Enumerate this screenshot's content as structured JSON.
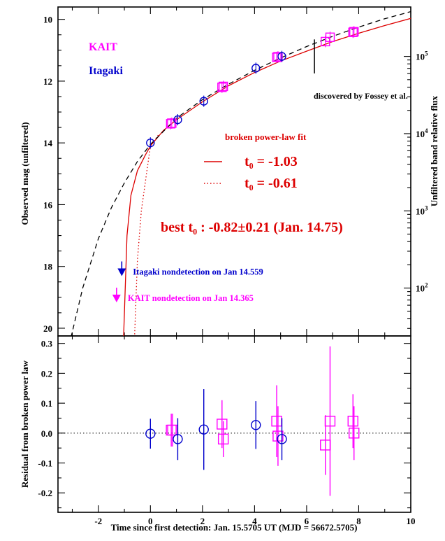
{
  "chart_data": [
    {
      "type": "scatter",
      "panel": "top",
      "xlabel": "",
      "ylabel": "Observed mag (unfiltered)",
      "ylabel_right": "Unfiltered band relative flux",
      "xlim": [
        -3.55,
        10
      ],
      "ylim": [
        20.25,
        9.6
      ],
      "y_inverted": true,
      "y_ticks": [
        "10",
        "12",
        "14",
        "16",
        "18",
        "20"
      ],
      "y_right_ticks": [
        "10^5",
        "10^4",
        "10^3",
        "10^2"
      ],
      "y_right_tick_mags": [
        11.2,
        13.7,
        16.2,
        18.7
      ],
      "x_ticks": [
        -2,
        0,
        2,
        4,
        6,
        8,
        10
      ],
      "legend_labels": [
        "KAIT",
        "Itagaki"
      ],
      "series": [
        {
          "name": "KAIT",
          "color": "#ff00ff",
          "marker": "square",
          "x": [
            0.78,
            0.82,
            2.75,
            2.8,
            4.85,
            4.9,
            6.72,
            6.9,
            7.78,
            7.82
          ],
          "y": [
            13.38,
            13.36,
            12.2,
            12.17,
            11.23,
            11.21,
            10.72,
            10.58,
            10.42,
            10.4
          ]
        },
        {
          "name": "Itagaki",
          "color": "#0000cc",
          "marker": "circle",
          "x": [
            0.0,
            1.05,
            2.05,
            4.05,
            5.05
          ],
          "y": [
            14.0,
            13.25,
            12.65,
            11.58,
            11.2
          ]
        }
      ],
      "fits": [
        {
          "name": "t₀ = -1.03",
          "style": "solid",
          "color": "#dd0000",
          "t0": -1.03,
          "curve": [
            [
              -1.03,
              20.3
            ],
            [
              -0.9,
              17.0
            ],
            [
              -0.75,
              15.7
            ],
            [
              -0.5,
              14.9
            ],
            [
              -0.2,
              14.4
            ],
            [
              0,
              14.1
            ],
            [
              0.5,
              13.6
            ],
            [
              1,
              13.25
            ],
            [
              2,
              12.67
            ],
            [
              3,
              12.15
            ],
            [
              4,
              11.72
            ],
            [
              5,
              11.35
            ],
            [
              6,
              11.03
            ],
            [
              7,
              10.72
            ],
            [
              8,
              10.45
            ],
            [
              9,
              10.2
            ],
            [
              10,
              9.97
            ]
          ]
        },
        {
          "name": "t₀ = -0.61",
          "style": "dotted",
          "color": "#dd0000",
          "t0": -0.61,
          "curve": [
            [
              -0.61,
              20.3
            ],
            [
              -0.5,
              17.8
            ],
            [
              -0.35,
              16.2
            ],
            [
              -0.15,
              15.0
            ],
            [
              0,
              14.1
            ],
            [
              0.3,
              13.75
            ]
          ]
        },
        {
          "name": "dashed model",
          "style": "dashed",
          "color": "#000000",
          "curve": [
            [
              -3.05,
              20.3
            ],
            [
              -2.6,
              18.7
            ],
            [
              -2.0,
              17.1
            ],
            [
              -1.5,
              16.1
            ],
            [
              -1.0,
              15.3
            ],
            [
              -0.5,
              14.6
            ],
            [
              0,
              14.05
            ],
            [
              1,
              13.2
            ],
            [
              2,
              12.6
            ],
            [
              3,
              12.1
            ],
            [
              4,
              11.65
            ],
            [
              5,
              11.25
            ],
            [
              6,
              10.88
            ],
            [
              7,
              10.55
            ],
            [
              8,
              10.25
            ],
            [
              9,
              9.98
            ],
            [
              10,
              9.75
            ]
          ]
        }
      ],
      "nondetections": [
        {
          "label": "Itagaki nondetection on Jan 14.559",
          "x": -1.1,
          "y": 18.2,
          "color": "#0000cc"
        },
        {
          "label": "KAIT nondetection on Jan 14.365",
          "x": -1.3,
          "y": 19.05,
          "color": "#ff00ff"
        }
      ],
      "discovery_marker": {
        "x": 6.3,
        "y_range": [
          10.65,
          11.75
        ],
        "label": "discovered by Fossey et al."
      },
      "annotations": {
        "fit_title": "broken power-law fit",
        "best_t0": "best t₀ : -0.82±0.21  (Jan. 14.75)"
      }
    },
    {
      "type": "scatter",
      "panel": "bottom",
      "xlabel": "Time since first detection: Jan. 15.5705 UT (MJD = 56672.5705)",
      "ylabel": "Residual from broken power law",
      "xlim": [
        -3.55,
        10
      ],
      "ylim": [
        -0.265,
        0.325
      ],
      "y_ticks": [
        -0.2,
        -0.1,
        0.0,
        0.1,
        0.2,
        0.3
      ],
      "x_ticks": [
        -2,
        0,
        2,
        4,
        6,
        8,
        10
      ],
      "zero_line": "dotted",
      "series": [
        {
          "name": "KAIT",
          "color": "#ff00ff",
          "marker": "square",
          "x": [
            0.8,
            0.85,
            2.75,
            2.8,
            4.85,
            4.9,
            6.72,
            6.9,
            7.78,
            7.82
          ],
          "y": [
            0.01,
            0.01,
            0.03,
            -0.02,
            0.04,
            -0.01,
            -0.04,
            0.04,
            0.04,
            0.0
          ],
          "err": [
            0.055,
            0.055,
            0.08,
            0.06,
            0.12,
            0.1,
            0.1,
            0.25,
            0.09,
            0.09
          ]
        },
        {
          "name": "Itagaki",
          "color": "#0000cc",
          "marker": "circle",
          "x": [
            0.0,
            1.05,
            2.05,
            4.05,
            5.05
          ],
          "y": [
            -0.002,
            -0.02,
            0.012,
            0.027,
            -0.02
          ],
          "err": [
            0.05,
            0.07,
            0.135,
            0.08,
            0.07
          ]
        }
      ]
    }
  ]
}
